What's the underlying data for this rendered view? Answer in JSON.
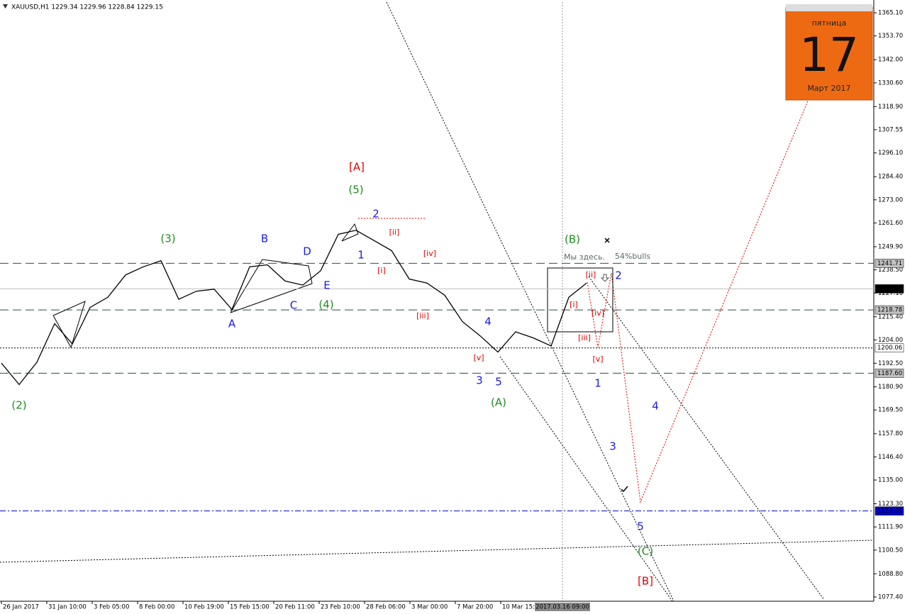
{
  "chart_data": {
    "type": "line",
    "title": "XAUUSD,H1  1229.34 1229.96 1228.84 1229.15",
    "x_labels": [
      "26 Jan 2017",
      "31 Jan 10:00",
      "3 Feb 05:00",
      "8 Feb 00:00",
      "10 Feb 19:00",
      "15 Feb 15:00",
      "20 Feb 11:00",
      "23 Feb 10:00",
      "28 Feb 06:00",
      "3 Mar 00:00",
      "7 Mar 20:00",
      "10 Mar 15:00"
    ],
    "crosshair_label": "2017.03.16 09:00",
    "values": [
      1192.6,
      1182,
      1193,
      1212,
      1202,
      1220,
      1225,
      1236,
      1240,
      1243,
      1224,
      1228,
      1229,
      1219,
      1240,
      1241,
      1233,
      1231,
      1238,
      1256,
      1258,
      1253,
      1248,
      1234,
      1232,
      1226,
      1213,
      1206,
      1198,
      1208,
      1205,
      1201,
      1225,
      1232
    ],
    "color": "#000000",
    "ylim": [
      1075.3,
      1371.4
    ],
    "yticks": [
      {
        "value": 1365.1,
        "label": "1365.10"
      },
      {
        "value": 1353.7,
        "label": "1353.70"
      },
      {
        "value": 1342,
        "label": "1342.00"
      },
      {
        "value": 1330.6,
        "label": "1330.60"
      },
      {
        "value": 1318.9,
        "label": "1318.90"
      },
      {
        "value": 1307.55,
        "label": "1307.55"
      },
      {
        "value": 1296.1,
        "label": "1296.10"
      },
      {
        "value": 1284.4,
        "label": "1284.40"
      },
      {
        "value": 1273,
        "label": "1273.00"
      },
      {
        "value": 1261.6,
        "label": "1261.60"
      },
      {
        "value": 1249.9,
        "label": "1249.90"
      },
      {
        "value": 1238.5,
        "label": "1238.50"
      },
      {
        "value": 1227.1,
        "label": "1227.10"
      },
      {
        "value": 1215.4,
        "label": "1215.40"
      },
      {
        "value": 1204,
        "label": "1204.00"
      },
      {
        "value": 1192.5,
        "label": "1192.50"
      },
      {
        "value": 1180.9,
        "label": "1180.90"
      },
      {
        "value": 1169.5,
        "label": "1169.50"
      },
      {
        "value": 1157.8,
        "label": "1157.80"
      },
      {
        "value": 1146.4,
        "label": "1146.40"
      },
      {
        "value": 1135,
        "label": "1135.00"
      },
      {
        "value": 1123.3,
        "label": "1123.30"
      },
      {
        "value": 1111.9,
        "label": "1111.90"
      },
      {
        "value": 1100.5,
        "label": "1100.50"
      },
      {
        "value": 1088.8,
        "label": "1088.80"
      },
      {
        "value": 1077.4,
        "label": "1077.40"
      }
    ],
    "levels": [
      {
        "value": 1241.71,
        "style": "dash",
        "color": "#2f4f3f",
        "tag": "#c0c0c0"
      },
      {
        "value": 1229.15,
        "style": "solid",
        "color": "#c0c0c0",
        "tag": "#000000"
      },
      {
        "value": 1218.78,
        "style": "dash",
        "color": "#2f4f3f",
        "tag": "#c0c0c0"
      },
      {
        "value": 1200.06,
        "style": "dot",
        "color": "#000000",
        "tag": "#ffffff"
      },
      {
        "value": 1187.6,
        "label": "1187.60",
        "style": "dash",
        "color": "#2f4f3f",
        "tag": "#c0c0c0"
      },
      {
        "value": 1119.76,
        "style": "dashdot",
        "color": "#0000cc",
        "tag": "#0000cc"
      }
    ],
    "annotations": [
      {
        "text": "(2)",
        "color": "#1e8c1e"
      },
      {
        "text": "(3)",
        "color": "#1e8c1e"
      },
      {
        "text": "(4)",
        "color": "#1e8c1e"
      },
      {
        "text": "(5)",
        "color": "#1e8c1e"
      },
      {
        "text": "(B)",
        "color": "#1e8c1e"
      },
      {
        "text": "(A)",
        "color": "#1e8c1e"
      },
      {
        "text": "(C)",
        "color": "#1e8c1e"
      },
      {
        "text": "[A]",
        "color": "#e00000"
      },
      {
        "text": "[B]",
        "color": "#e00000"
      },
      {
        "text": "A",
        "color": "#1a1ae6"
      },
      {
        "text": "B",
        "color": "#1a1ae6"
      },
      {
        "text": "C",
        "color": "#1a1ae6"
      },
      {
        "text": "D",
        "color": "#1a1ae6"
      },
      {
        "text": "E",
        "color": "#1a1ae6"
      },
      {
        "text": "1",
        "color": "#1a1ae6"
      },
      {
        "text": "2",
        "color": "#1a1ae6"
      },
      {
        "text": "3",
        "color": "#1a1ae6"
      },
      {
        "text": "4",
        "color": "#1a1ae6"
      },
      {
        "text": "5",
        "color": "#1a1ae6"
      },
      {
        "text": "1",
        "color": "#1a1ae6"
      },
      {
        "text": "2",
        "color": "#1a1ae6"
      },
      {
        "text": "3",
        "color": "#1a1ae6"
      },
      {
        "text": "4",
        "color": "#1a1ae6"
      },
      {
        "text": "5",
        "color": "#1a1ae6"
      },
      {
        "text": "[i]",
        "color": "#e00000"
      },
      {
        "text": "[ii]",
        "color": "#e00000"
      },
      {
        "text": "[iii]",
        "color": "#e00000"
      },
      {
        "text": "[iv]",
        "color": "#e00000"
      },
      {
        "text": "[v]",
        "color": "#e00000"
      },
      {
        "text": "[i]",
        "color": "#e00000"
      },
      {
        "text": "[ii]",
        "color": "#e00000"
      },
      {
        "text": "[iii]",
        "color": "#e00000"
      },
      {
        "text": "[iv]",
        "color": "#e00000"
      },
      {
        "text": "[v]",
        "color": "#e00000"
      },
      {
        "text": "Мы здесь.",
        "color": "#5a6a6a"
      },
      {
        "text": "54%bulls",
        "color": "#5a6a6a"
      }
    ]
  },
  "calendar": {
    "weekday": "пятница",
    "day": "17",
    "month": "Март 2017"
  }
}
